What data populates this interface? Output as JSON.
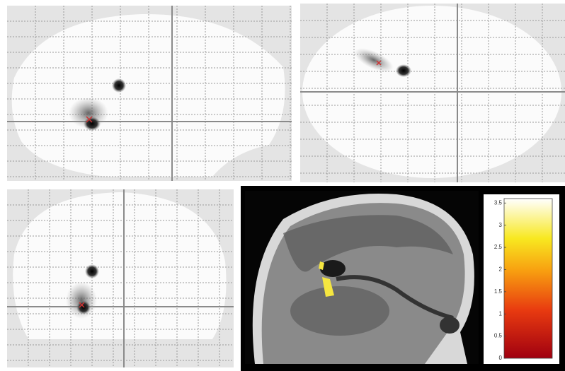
{
  "colorbar": {
    "ylim": [
      0,
      3.6
    ],
    "yticks": [
      0,
      0.5,
      1,
      1.5,
      2,
      2.5,
      3,
      3.5
    ]
  }
}
